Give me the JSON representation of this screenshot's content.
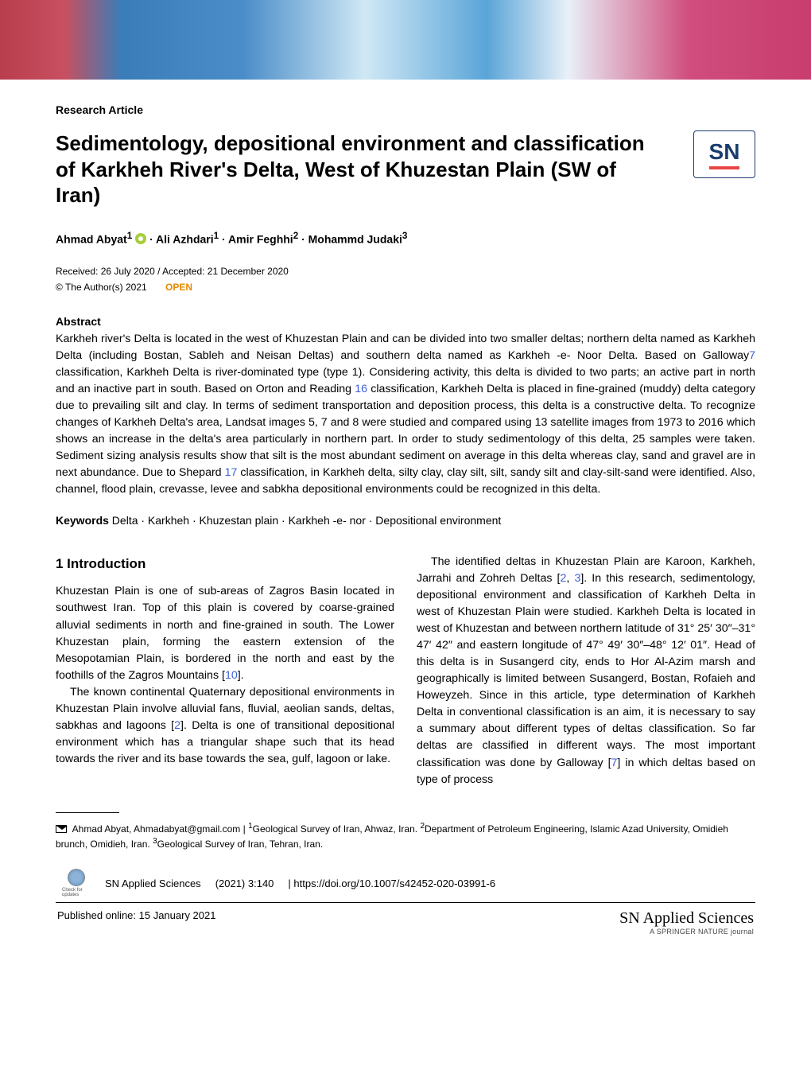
{
  "article_type": "Research Article",
  "title": "Sedimentology, depositional environment and classification of Karkheh River's Delta, West of Khuzestan Plain (SW of Iran)",
  "authors_prefix": "Ahmad Abyat",
  "authors_sup1": "1",
  "authors_rest": " · Ali Azhdari",
  "authors_sup1b": "1",
  "authors_mid": " · Amir Feghhi",
  "authors_sup2": "2",
  "authors_end": " · Mohammd Judaki",
  "authors_sup3": "3",
  "received": "Received: 26 July 2020 / Accepted: 21 December 2020",
  "copyright": "© The Author(s) 2021",
  "open": "OPEN",
  "abstract_label": "Abstract",
  "abstract_p1": "Karkheh river's Delta is located in the west of Khuzestan Plain and can be divided into two smaller deltas; northern delta named as Karkheh Delta (including Bostan, Sableh and Neisan Deltas) and southern delta named as Karkheh -e- Noor Delta. Based on Galloway",
  "abstract_cite7": "7",
  "abstract_p2": " classification, Karkheh Delta is river-dominated type (type 1). Considering activity, this delta is divided to two parts; an active part in north and an inactive part in south. Based on Orton and Reading ",
  "abstract_cite16": "16",
  "abstract_p3": " classifica­tion, Karkheh Delta is placed in fine-grained (muddy) delta category due to prevailing silt and clay. In terms of sediment transportation and deposition process, this delta is a constructive delta. To recognize changes of Karkheh Delta's area, Landsat images 5, 7 and 8 were studied and compared using 13 satellite images from 1973 to 2016 which shows an increase in the delta's area particularly in northern part. In order to study sedimentology of this delta, 25 samples were taken. Sediment sizing analysis results show that silt is the most abundant sediment on average in this delta whereas clay, sand and gravel are in next abundance. Due to Shepard ",
  "abstract_cite17": "17",
  "abstract_p4": " classification, in Karkheh delta, silty clay, clay silt, silt, sandy silt and clay-silt-sand were identified. Also, channel, flood plain, crevasse, levee and sabkha depositional environ­ments could be recognized in this delta.",
  "keywords_label": "Keywords",
  "keywords_text": " Delta · Karkheh · Khuzestan plain · Karkheh -e- nor · Depositional environment",
  "intro_head": "1  Introduction",
  "col1_p1": "Khuzestan Plain is one of sub-areas of Zagros Basin located in southwest Iran. Top of this plain is covered by coarse-grained alluvial sediments in north and fine-grained in south. The Lower Khuzestan plain, forming the eastern extension of the Mesopotamian Plain, is bordered in the north and east by the foothills of the Zagros Mountains [",
  "col1_cite10": "10",
  "col1_p1_end": "].",
  "col1_p2": "The known continental Quaternary depositional envi­ronments in Khuzestan Plain involve alluvial fans, fluvial, aeolian sands, deltas, sabkhas and lagoons [",
  "col1_cite2": "2",
  "col1_p2_end": "]. Delta is one of transitional depositional environment which has a tri­angular shape such that its head towards the river and its base towards the sea, gulf, lagoon or lake.",
  "col2_p1a": "The identified deltas in Khuzestan Plain are Karoon, Karkheh, Jarrahi and Zohreh Deltas [",
  "col2_cite2": "2",
  "col2_comma": ", ",
  "col2_cite3": "3",
  "col2_p1b": "]. In this research, sedimentology, depositional environment and classifi­cation of Karkheh Delta in west of Khuzestan Plain were studied. Karkheh Delta is located in west of Khuzestan and between northern latitude of 31° 25′ 30″–31° 47′ 42″ and eastern longitude of 47° 49′ 30″–48° 12′ 01″. Head of this delta is in Susangerd city, ends to Hor Al-Azim marsh and geographically is limited between Susangerd, Bostan, Rofaieh and Howeyzeh. Since in this article, type determi­nation of Karkheh Delta in conventional classification is an aim, it is necessary to say a summary about different types of deltas classification. So far deltas are classified in different ways. The most important classification was done by Galloway [",
  "col2_cite7": "7",
  "col2_p1c": "] in which deltas based on type of process",
  "corr_text_a": " Ahmad Abyat, Ahmadabyat@gmail.com | ",
  "corr_aff1_sup": "1",
  "corr_aff1": "Geological Survey of Iran, Ahwaz, Iran. ",
  "corr_aff2_sup": "2",
  "corr_aff2": "Department of Petroleum Engineering, Islamic Azad University, Omidieh brunch, Omidieh, Iran. ",
  "corr_aff3_sup": "3",
  "corr_aff3": "Geological Survey of Iran, Tehran, Iran.",
  "journal_ref": "SN Applied Sciences",
  "vol_ref": "(2021) 3:140",
  "doi": "| https://doi.org/10.1007/s42452-020-03991-6",
  "check_label": "Check for updates",
  "pub_date": "Published online: 15 January 2021",
  "brand_name": "SN Applied Sciences",
  "brand_tag": "A SPRINGER NATURE journal",
  "sn_logo_text": "SN",
  "colors": {
    "link": "#3d5fd8",
    "open": "#e58a00",
    "orcid": "#a6ce39",
    "sn_border": "#1a3c6e",
    "sn_accent": "#e84545"
  }
}
